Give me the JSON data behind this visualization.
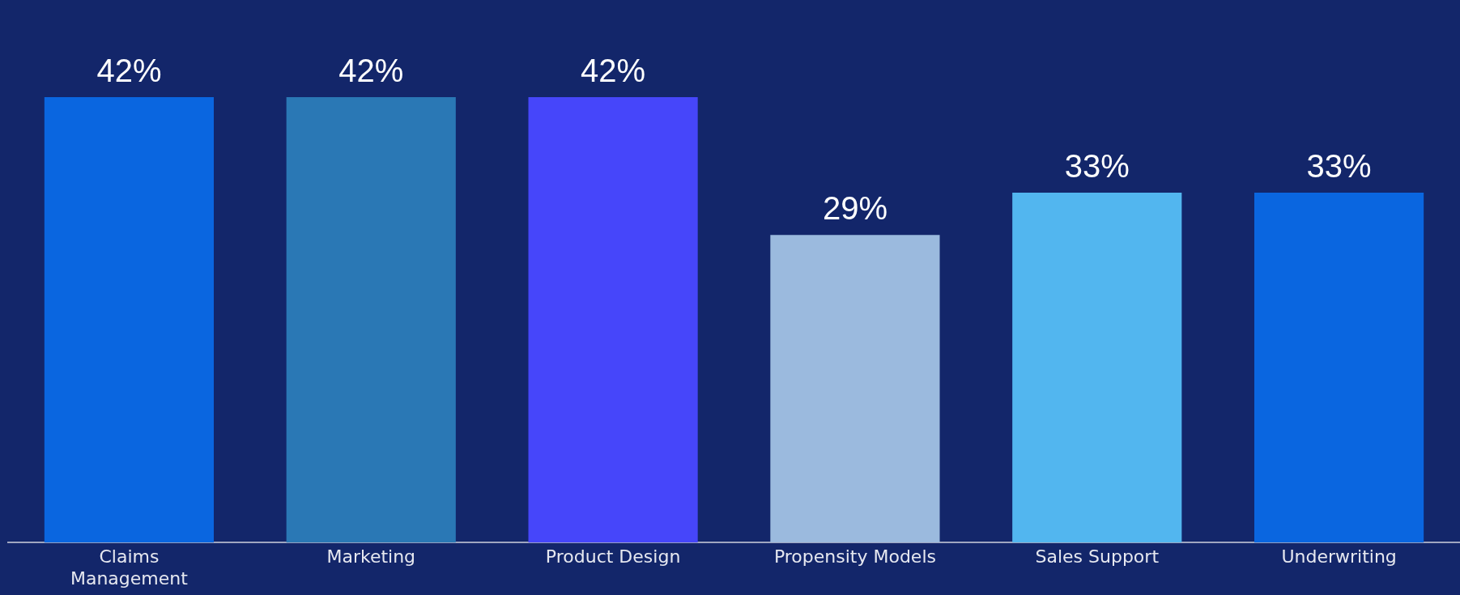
{
  "chart_data": {
    "type": "bar",
    "categories": [
      "Claims Management",
      "Marketing",
      "Product Design",
      "Propensity Models",
      "Sales Support",
      "Underwriting"
    ],
    "values": [
      42,
      42,
      42,
      29,
      33,
      33
    ],
    "value_labels": [
      "42%",
      "42%",
      "42%",
      "29%",
      "33%",
      "33%"
    ],
    "colors": [
      "#0a66e0",
      "#2a78b5",
      "#4646fa",
      "#9bbade",
      "#52b6ef",
      "#0a66e0"
    ],
    "grid": false,
    "legend": false
  }
}
